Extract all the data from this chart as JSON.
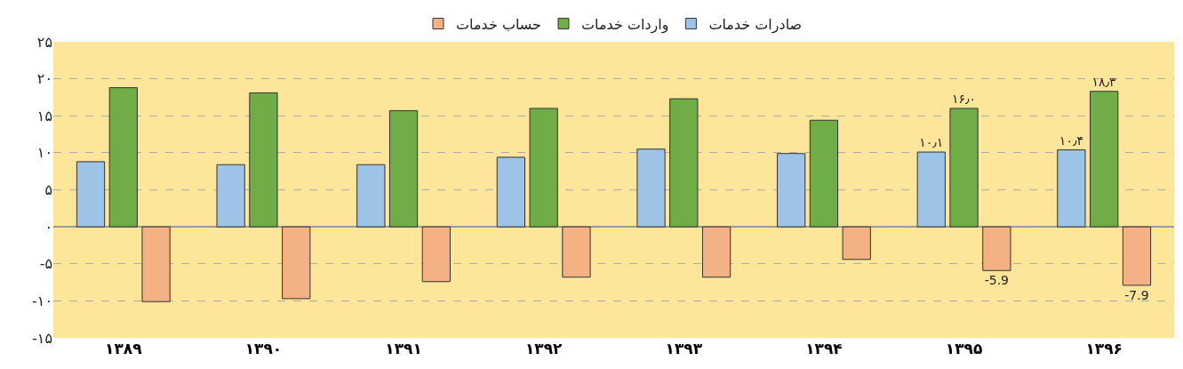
{
  "chart_data": {
    "type": "bar",
    "categories": [
      "۱۳۸۹",
      "۱۳۹۰",
      "۱۳۹۱",
      "۱۳۹۲",
      "۱۳۹۳",
      "۱۳۹۴",
      "۱۳۹۵",
      "۱۳۹۶"
    ],
    "series": [
      {
        "name": "صادرات خدمات",
        "color": "#9dc3e6",
        "values": [
          8.8,
          8.4,
          8.4,
          9.4,
          10.5,
          9.9,
          10.1,
          10.4
        ],
        "value_labels": [
          null,
          null,
          null,
          null,
          null,
          null,
          "۱۰٫۱",
          "۱۰٫۴"
        ]
      },
      {
        "name": "واردات خدمات",
        "color": "#70ad47",
        "values": [
          18.8,
          18.1,
          15.7,
          16.0,
          17.3,
          14.4,
          16.0,
          18.3
        ],
        "value_labels": [
          null,
          null,
          null,
          null,
          null,
          null,
          "۱۶٫۰",
          "۱۸٫۳"
        ]
      },
      {
        "name": "حساب خدمات",
        "color": "#f4b183",
        "values": [
          -10.1,
          -9.7,
          -7.4,
          -6.8,
          -6.8,
          -4.4,
          -5.9,
          -7.9
        ],
        "value_labels": [
          null,
          null,
          null,
          null,
          null,
          null,
          "-5.9",
          "-7.9"
        ]
      }
    ],
    "ylim": [
      -15,
      25
    ],
    "yticks": [
      {
        "value": -15,
        "label": "-۱۵"
      },
      {
        "value": -10,
        "label": "-۱۰"
      },
      {
        "value": -5,
        "label": "-۵"
      },
      {
        "value": 0,
        "label": "۰"
      },
      {
        "value": 5,
        "label": "۵"
      },
      {
        "value": 10,
        "label": "۱۰"
      },
      {
        "value": 15,
        "label": "۱۵"
      },
      {
        "value": 20,
        "label": "۲۰"
      },
      {
        "value": 25,
        "label": "۲۵"
      }
    ],
    "grid": "y",
    "legend": "top"
  }
}
